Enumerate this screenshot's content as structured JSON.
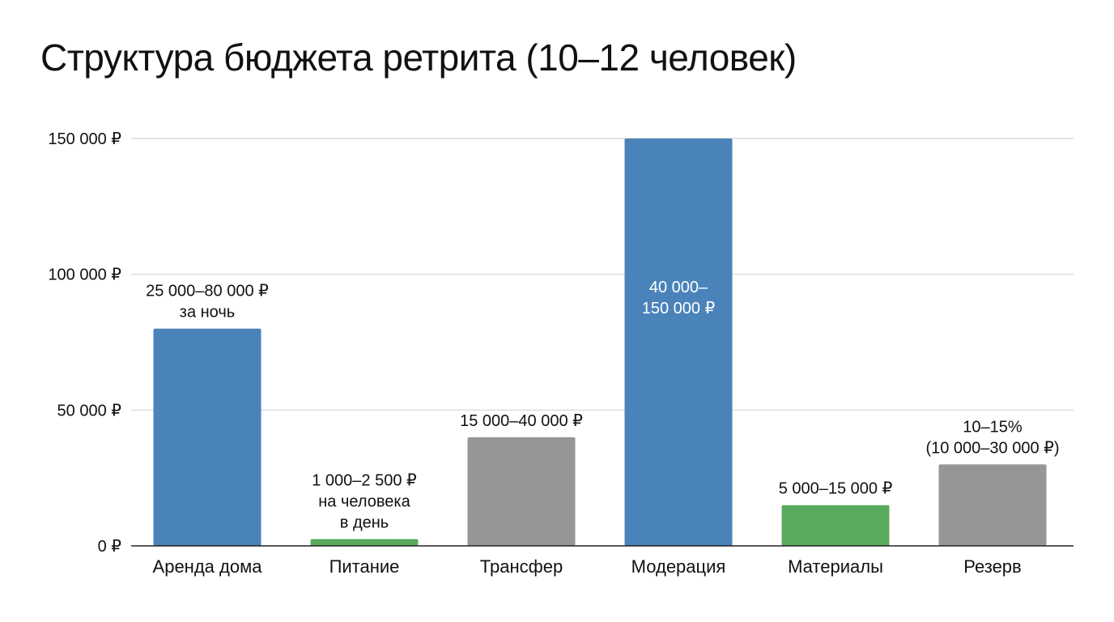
{
  "colors": {
    "blue": "#4a83b9",
    "green": "#5aaa5c",
    "gray": "#969696",
    "grid": "#d4d4d4",
    "axis": "#222222"
  },
  "chart_data": {
    "type": "bar",
    "title": "Структура бюджета ретрита (10–12 человек)",
    "categories": [
      "Аренда дома",
      "Питание",
      "Трансфер",
      "Модерация",
      "Материалы",
      "Резерв"
    ],
    "values": [
      80000,
      2500,
      40000,
      150000,
      15000,
      30000
    ],
    "bar_colors": [
      "blue",
      "green",
      "gray",
      "blue",
      "green",
      "gray"
    ],
    "data_labels": [
      [
        "25 000–80 000 ₽",
        "за ночь"
      ],
      [
        "1 000–2 500 ₽",
        "на человека",
        "в день"
      ],
      [
        "15 000–40 000 ₽"
      ],
      [
        "40 000–",
        "150 000 ₽"
      ],
      [
        "5 000–15 000 ₽"
      ],
      [
        "10–15%",
        "(10 000–30 000 ₽)"
      ]
    ],
    "label_inside": [
      false,
      false,
      false,
      true,
      false,
      false
    ],
    "ylim": [
      0,
      150000
    ],
    "yticks": [
      0,
      50000,
      100000,
      150000
    ],
    "ytick_labels": [
      "0 ₽",
      "50 000 ₽",
      "100 000 ₽",
      "150 000 ₽"
    ],
    "grid": true,
    "legend": "none"
  }
}
